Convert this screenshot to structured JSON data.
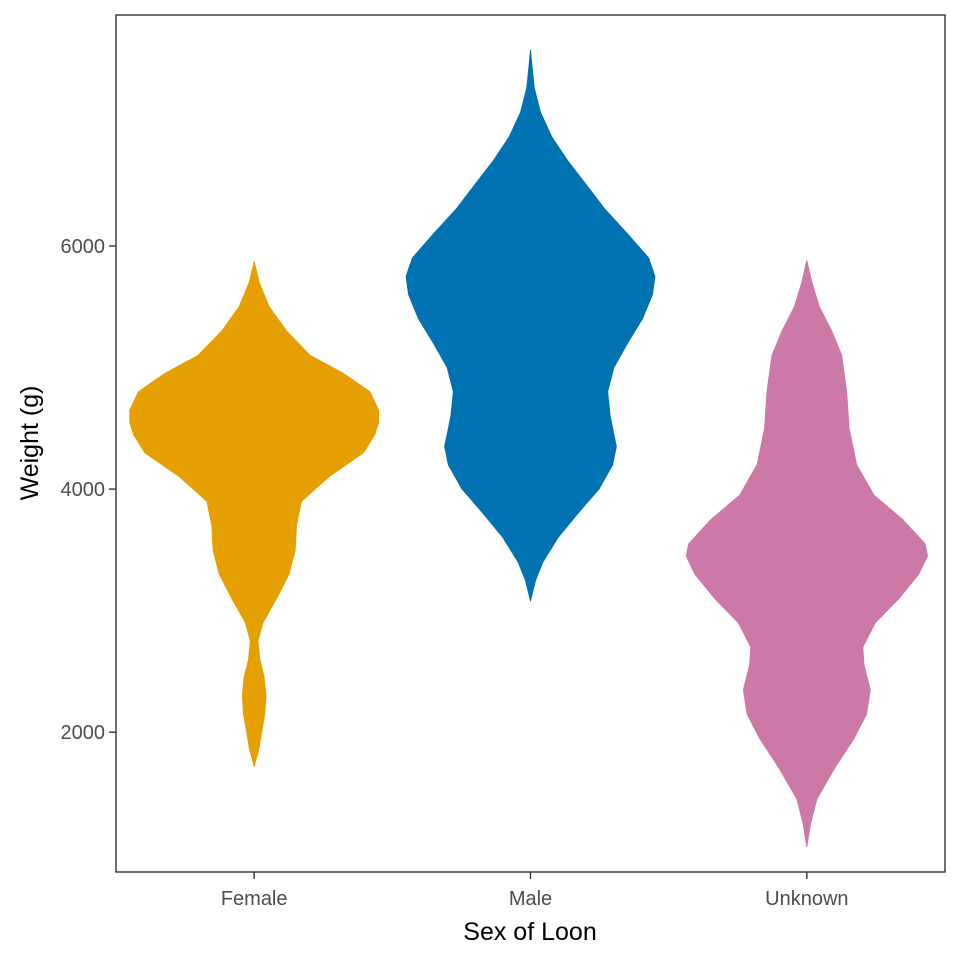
{
  "chart_data": {
    "type": "violin",
    "xlabel": "Sex of Loon",
    "ylabel": "Weight (g)",
    "ylim": [
      850,
      7900
    ],
    "yticks": [
      2000,
      4000,
      6000
    ],
    "categories": [
      "Female",
      "Male",
      "Unknown"
    ],
    "grid": false,
    "legend": "none",
    "series": [
      {
        "category": "Female",
        "color": "#E69F00",
        "profile": [
          [
            1720,
            0.0
          ],
          [
            1850,
            0.035
          ],
          [
            2000,
            0.06
          ],
          [
            2150,
            0.085
          ],
          [
            2300,
            0.095
          ],
          [
            2450,
            0.08
          ],
          [
            2600,
            0.045
          ],
          [
            2750,
            0.03
          ],
          [
            2900,
            0.07
          ],
          [
            3100,
            0.18
          ],
          [
            3300,
            0.28
          ],
          [
            3500,
            0.33
          ],
          [
            3700,
            0.34
          ],
          [
            3900,
            0.38
          ],
          [
            4100,
            0.6
          ],
          [
            4300,
            0.88
          ],
          [
            4450,
            0.97
          ],
          [
            4550,
            1.0
          ],
          [
            4650,
            1.0
          ],
          [
            4800,
            0.93
          ],
          [
            4950,
            0.72
          ],
          [
            5100,
            0.45
          ],
          [
            5300,
            0.26
          ],
          [
            5500,
            0.12
          ],
          [
            5700,
            0.04
          ],
          [
            5870,
            0.0
          ]
        ]
      },
      {
        "category": "Male",
        "color": "#0072B2",
        "profile": [
          [
            3080,
            0.0
          ],
          [
            3250,
            0.04
          ],
          [
            3400,
            0.1
          ],
          [
            3600,
            0.22
          ],
          [
            3800,
            0.38
          ],
          [
            4000,
            0.55
          ],
          [
            4200,
            0.66
          ],
          [
            4350,
            0.69
          ],
          [
            4600,
            0.64
          ],
          [
            4800,
            0.62
          ],
          [
            5000,
            0.67
          ],
          [
            5200,
            0.78
          ],
          [
            5400,
            0.9
          ],
          [
            5600,
            0.98
          ],
          [
            5750,
            1.0
          ],
          [
            5900,
            0.95
          ],
          [
            6100,
            0.78
          ],
          [
            6300,
            0.6
          ],
          [
            6500,
            0.45
          ],
          [
            6700,
            0.3
          ],
          [
            6900,
            0.17
          ],
          [
            7100,
            0.08
          ],
          [
            7300,
            0.03
          ],
          [
            7500,
            0.01
          ],
          [
            7610,
            0.0
          ]
        ]
      },
      {
        "category": "Unknown",
        "color": "#CC79A7",
        "profile": [
          [
            1060,
            0.0
          ],
          [
            1250,
            0.03
          ],
          [
            1450,
            0.08
          ],
          [
            1700,
            0.22
          ],
          [
            1950,
            0.38
          ],
          [
            2150,
            0.48
          ],
          [
            2350,
            0.51
          ],
          [
            2550,
            0.46
          ],
          [
            2700,
            0.45
          ],
          [
            2900,
            0.55
          ],
          [
            3100,
            0.74
          ],
          [
            3300,
            0.9
          ],
          [
            3450,
            0.97
          ],
          [
            3550,
            0.95
          ],
          [
            3750,
            0.77
          ],
          [
            3950,
            0.54
          ],
          [
            4200,
            0.4
          ],
          [
            4500,
            0.34
          ],
          [
            4800,
            0.32
          ],
          [
            5100,
            0.28
          ],
          [
            5300,
            0.2
          ],
          [
            5500,
            0.1
          ],
          [
            5700,
            0.04
          ],
          [
            5880,
            0.0
          ]
        ]
      }
    ]
  }
}
